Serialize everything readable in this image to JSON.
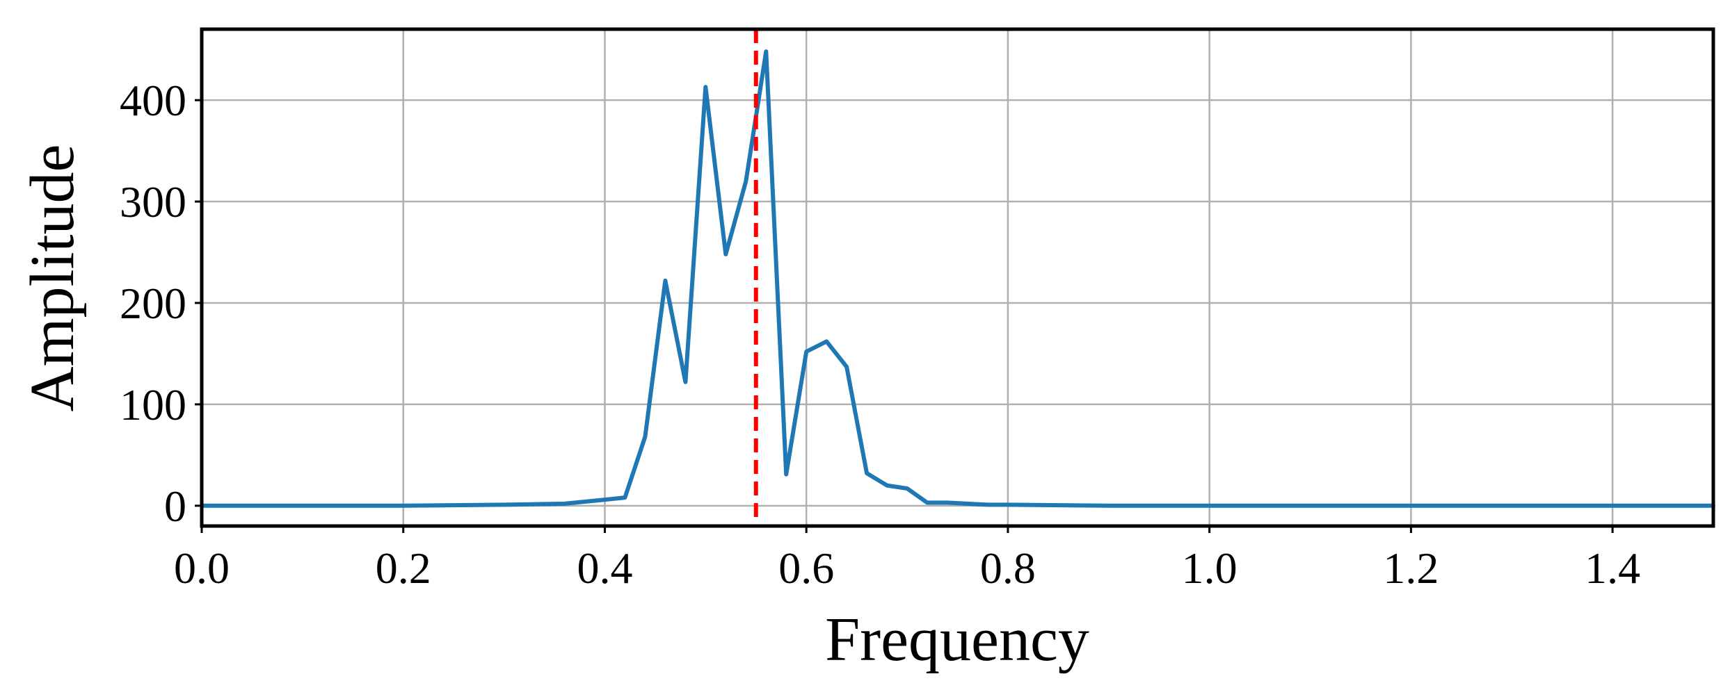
{
  "chart_data": {
    "type": "line",
    "xlabel": "Frequency",
    "ylabel": "Amplitude",
    "xlim": [
      0.0,
      1.5
    ],
    "ylim": [
      -20,
      470
    ],
    "grid": true,
    "xticks": [
      0.0,
      0.2,
      0.4,
      0.6,
      0.8,
      1.0,
      1.2,
      1.4
    ],
    "xtick_labels": [
      "0.0",
      "0.2",
      "0.4",
      "0.6",
      "0.8",
      "1.0",
      "1.2",
      "1.4"
    ],
    "yticks": [
      0,
      100,
      200,
      300,
      400
    ],
    "ytick_labels": [
      "0",
      "100",
      "200",
      "300",
      "400"
    ],
    "series": [
      {
        "color": "#1f77b4",
        "x": [
          0.0,
          0.1,
          0.2,
          0.3,
          0.36,
          0.4,
          0.42,
          0.44,
          0.46,
          0.48,
          0.5,
          0.52,
          0.54,
          0.56,
          0.58,
          0.6,
          0.62,
          0.64,
          0.66,
          0.68,
          0.7,
          0.72,
          0.74,
          0.76,
          0.78,
          0.8,
          0.9,
          1.0,
          1.2,
          1.5
        ],
        "y": [
          0,
          0,
          0,
          1,
          2,
          6,
          8,
          68,
          222,
          122,
          413,
          248,
          320,
          448,
          31,
          152,
          162,
          137,
          32,
          20,
          17,
          3,
          3,
          2,
          1,
          1,
          0,
          0,
          0,
          0
        ]
      }
    ],
    "reference_line": {
      "x": 0.55,
      "color": "#ff0000",
      "style": "dashed"
    }
  }
}
